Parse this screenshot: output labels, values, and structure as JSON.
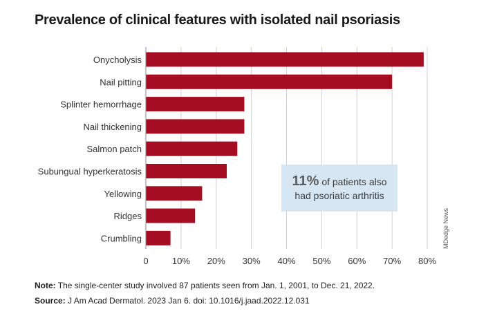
{
  "title": "Prevalence of clinical features with isolated nail psoriasis",
  "callout": {
    "highlight": "11%",
    "line1_rest": " of patients also",
    "line2": "had psoriatic arthritis"
  },
  "watermark": "MDedge News",
  "notes": {
    "note_label": "Note:",
    "note_text": " The single-center study involved 87 patients seen from Jan. 1, 2001, to Dec. 21, 2022.",
    "source_label": "Source:",
    "source_text": " J Am Acad Dermatol. 2023 Jan 6. doi: 10.1016/j.jaad.2022.12.031"
  },
  "colors": {
    "bar": "#a50d22",
    "grid": "#d0d0d0",
    "axis": "#888888"
  },
  "chart_data": {
    "type": "bar",
    "orientation": "horizontal",
    "categories": [
      "Onycholysis",
      "Nail pitting",
      "Splinter hemorrhage",
      "Nail thickening",
      "Salmon patch",
      "Subungual hyperkeratosis",
      "Yellowing",
      "Ridges",
      "Crumbling"
    ],
    "values": [
      79,
      70,
      28,
      28,
      26,
      23,
      16,
      14,
      7
    ],
    "xlim": [
      0,
      80
    ],
    "xticks": [
      0,
      10,
      20,
      30,
      40,
      50,
      60,
      70,
      80
    ],
    "tick_labels": [
      "0",
      "10%",
      "20%",
      "30%",
      "40%",
      "50%",
      "60%",
      "70%",
      "80%"
    ],
    "grid": true,
    "title": "Prevalence of clinical features with isolated nail psoriasis",
    "xlabel": "",
    "ylabel": ""
  }
}
